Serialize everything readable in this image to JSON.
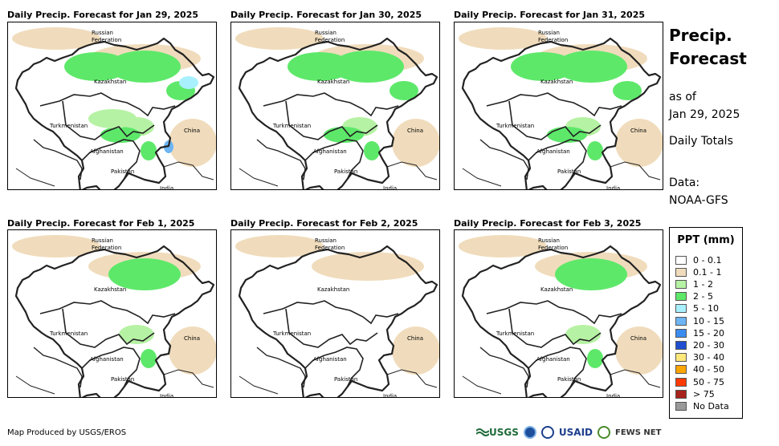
{
  "panels": [
    {
      "title": "Daily Precip. Forecast for Jan 29, 2025",
      "intensity": 3
    },
    {
      "title": "Daily Precip. Forecast for Jan 30, 2025",
      "intensity": 2
    },
    {
      "title": "Daily Precip. Forecast for Jan 31, 2025",
      "intensity": 2
    },
    {
      "title": "Daily Precip. Forecast for Feb 1, 2025",
      "intensity": 1
    },
    {
      "title": "Daily Precip. Forecast for Feb 2, 2025",
      "intensity": 0
    },
    {
      "title": "Daily Precip. Forecast for Feb 3, 2025",
      "intensity": 1
    }
  ],
  "map_labels": {
    "russia": "Russian",
    "russia2": "Federation",
    "kazakhstan": "Kazakhstan",
    "turkmenistan": "Turkmenistan",
    "china": "China",
    "afghanistan": "Afghanistan",
    "pakistan": "Pakistan",
    "india": "India"
  },
  "side": {
    "title1": "Precip.",
    "title2": "Forecast",
    "asof1": "as of",
    "asof2": "Jan 29, 2025",
    "totals": "Daily Totals",
    "data1": "Data:",
    "data2": "NOAA-GFS"
  },
  "legend": {
    "title": "PPT (mm)",
    "items": [
      {
        "label": "0 - 0.1",
        "color": "#ffffff"
      },
      {
        "label": "0.1 - 1",
        "color": "#f0dcbc"
      },
      {
        "label": "1 - 2",
        "color": "#b6f2a4"
      },
      {
        "label": "2 - 5",
        "color": "#5ee86a"
      },
      {
        "label": "5 - 10",
        "color": "#a9f0ff"
      },
      {
        "label": "10 - 15",
        "color": "#6db5f5"
      },
      {
        "label": "15 - 20",
        "color": "#3a8cf0"
      },
      {
        "label": "20 - 30",
        "color": "#1f4fd0"
      },
      {
        "label": "30 - 40",
        "color": "#ffe87a"
      },
      {
        "label": "40 - 50",
        "color": "#ffa500"
      },
      {
        "label": "50 - 75",
        "color": "#ff3a00"
      },
      {
        "label": "> 75",
        "color": "#a8231b"
      },
      {
        "label": "No Data",
        "color": "#999999"
      }
    ]
  },
  "credit": "Map Produced by USGS/EROS",
  "logos": {
    "usgs": "USGS",
    "usaid": "USAID",
    "fews": "FEWS NET"
  }
}
